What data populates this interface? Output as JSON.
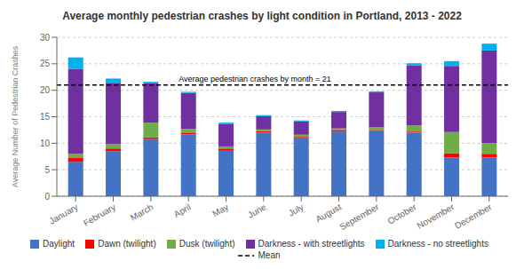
{
  "chart_data": {
    "type": "bar",
    "stacked": true,
    "title": "Average monthly pedestrian crashes by light condition in Portland, 2013 - 2022",
    "ylabel": "Average Number of Pedestrian Crashes",
    "categories": [
      "January",
      "February",
      "March",
      "April",
      "May",
      "June",
      "July",
      "August",
      "September",
      "October",
      "November",
      "December"
    ],
    "series": [
      {
        "name": "Daylight",
        "color": "#4472C4",
        "values": [
          6.5,
          8.5,
          10.8,
          11.7,
          8.7,
          12.0,
          11.0,
          12.2,
          12.3,
          12.0,
          7.3,
          7.3
        ]
      },
      {
        "name": "Dawn (twilight)",
        "color": "#FF0000",
        "values": [
          0.7,
          0.5,
          0.3,
          0.3,
          0.3,
          0.3,
          0.2,
          0.3,
          0.2,
          0.2,
          0.8,
          0.7
        ]
      },
      {
        "name": "Dusk (twilight)",
        "color": "#70AD47",
        "values": [
          0.8,
          0.8,
          2.8,
          0.7,
          0.4,
          0.3,
          0.4,
          0.3,
          0.5,
          1.2,
          4.0,
          2.0
        ]
      },
      {
        "name": "Darkness - with streetlights",
        "color": "#7030A0",
        "values": [
          16.0,
          11.5,
          7.4,
          6.8,
          4.2,
          2.5,
          2.5,
          3.1,
          6.6,
          11.3,
          12.5,
          17.5
        ]
      },
      {
        "name": "Darkness - no streetlights",
        "color": "#00B0F0",
        "values": [
          2.2,
          0.9,
          0.3,
          0.2,
          0.3,
          0.2,
          0.2,
          0.2,
          0.2,
          0.4,
          0.9,
          1.3
        ]
      }
    ],
    "mean_line": {
      "value": 21,
      "name": "Mean",
      "label": "Average pedestrian crashes by month = 21",
      "color": "#000000",
      "line_style": "dashed"
    },
    "ylim": [
      0,
      30
    ],
    "yticks": [
      0,
      5,
      10,
      15,
      20,
      25,
      30
    ],
    "grid": true,
    "legend": "bottom"
  }
}
